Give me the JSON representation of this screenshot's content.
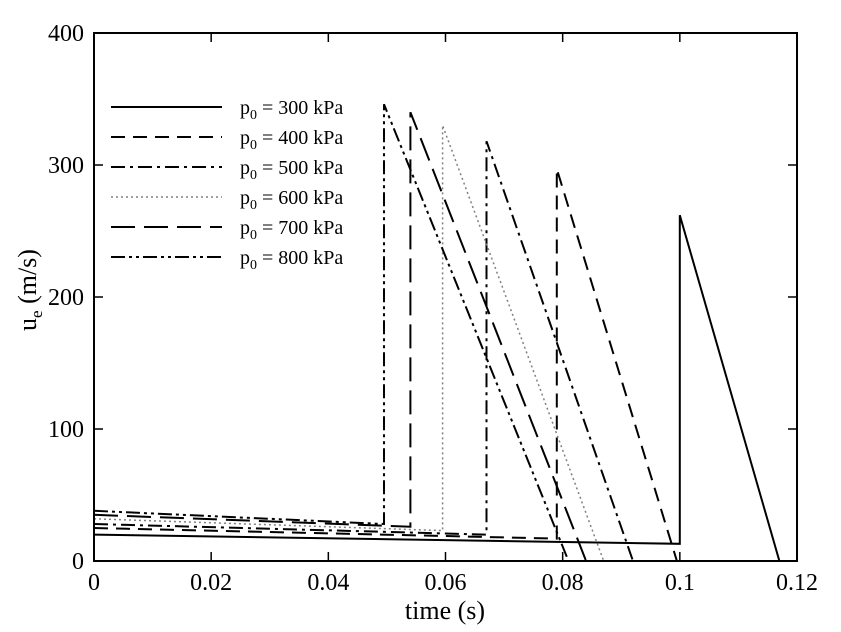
{
  "chart_data": {
    "type": "line",
    "xlabel": "time (s)",
    "ylabel_main": "u",
    "ylabel_sub": "e",
    "ylabel_unit": " (m/s)",
    "xlim": [
      0,
      0.12
    ],
    "ylim": [
      0,
      400
    ],
    "x_ticks": [
      0,
      0.02,
      0.04,
      0.06,
      0.08,
      0.1,
      0.12
    ],
    "x_tick_labels": [
      "0",
      "0.02",
      "0.04",
      "0.06",
      "0.08",
      "0.1",
      "0.12"
    ],
    "y_ticks": [
      0,
      100,
      200,
      300,
      400
    ],
    "y_tick_labels": [
      "0",
      "100",
      "200",
      "300",
      "400"
    ],
    "grid": false,
    "legend_position": "top-left",
    "series": [
      {
        "name": "p0 = 300 kPa",
        "label_main": "p",
        "label_sub": "0",
        "label_rest": " = 300 kPa",
        "style": "solid",
        "color": "#000000",
        "points": [
          [
            0,
            20
          ],
          [
            0.1,
            13
          ],
          [
            0.1,
            262
          ],
          [
            0.117,
            0
          ],
          [
            0.12,
            0
          ]
        ]
      },
      {
        "name": "p0 = 400 kPa",
        "label_main": "p",
        "label_sub": "0",
        "label_rest": " = 400 kPa",
        "style": "dashed",
        "color": "#000000",
        "points": [
          [
            0,
            25
          ],
          [
            0.079,
            17
          ],
          [
            0.079,
            297
          ],
          [
            0.0995,
            0
          ],
          [
            0.12,
            0
          ]
        ]
      },
      {
        "name": "p0 = 500 kPa",
        "label_main": "p",
        "label_sub": "0",
        "label_rest": " = 500 kPa",
        "style": "dashdot",
        "color": "#000000",
        "points": [
          [
            0,
            28
          ],
          [
            0.067,
            20
          ],
          [
            0.067,
            318
          ],
          [
            0.092,
            0
          ],
          [
            0.12,
            0
          ]
        ]
      },
      {
        "name": "p0 = 600 kPa",
        "label_main": "p",
        "label_sub": "0",
        "label_rest": " = 600 kPa",
        "style": "dotted",
        "color": "#808080",
        "points": [
          [
            0,
            32
          ],
          [
            0.0595,
            23
          ],
          [
            0.0595,
            330
          ],
          [
            0.087,
            0
          ],
          [
            0.12,
            0
          ]
        ]
      },
      {
        "name": "p0 = 700 kPa",
        "label_main": "p",
        "label_sub": "0",
        "label_rest": " = 700 kPa",
        "style": "longdash",
        "color": "#000000",
        "points": [
          [
            0,
            35
          ],
          [
            0.054,
            26
          ],
          [
            0.054,
            340
          ],
          [
            0.084,
            0
          ],
          [
            0.12,
            0
          ]
        ]
      },
      {
        "name": "p0 = 800 kPa",
        "label_main": "p",
        "label_sub": "0",
        "label_rest": " = 800 kPa",
        "style": "dashdotdot",
        "color": "#000000",
        "points": [
          [
            0,
            38
          ],
          [
            0.0495,
            28
          ],
          [
            0.0495,
            346
          ],
          [
            0.081,
            0
          ],
          [
            0.12,
            0
          ]
        ]
      }
    ]
  }
}
